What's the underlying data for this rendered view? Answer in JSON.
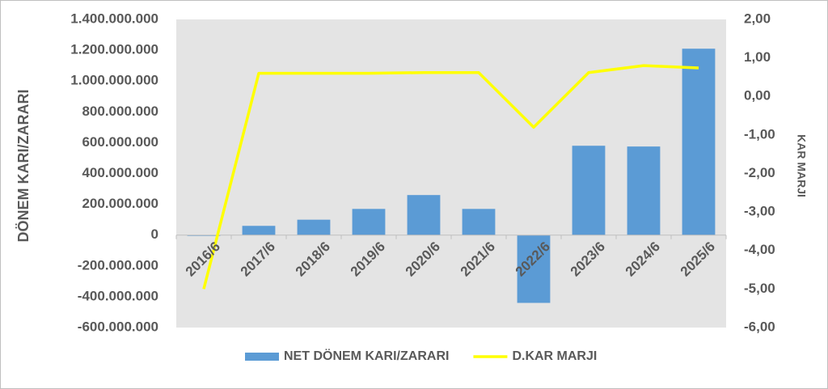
{
  "chart_data": {
    "type": "bar-line",
    "y_label": "DÖNEM KARI/ZARARI",
    "y2_label": "KAR MARJI",
    "categories": [
      "2016/6",
      "2017/6",
      "2018/6",
      "2019/6",
      "2020/6",
      "2021/6",
      "2022/6",
      "2023/6",
      "2024/6",
      "2025/6"
    ],
    "series": [
      {
        "name": "NET DÖNEM KARI/ZARARI",
        "color": "#5b9bd5",
        "type": "bar",
        "values": [
          -5000000,
          60000000,
          100000000,
          170000000,
          260000000,
          170000000,
          -440000000,
          580000000,
          575000000,
          1210000000
        ]
      },
      {
        "name": "D.KAR MARJI",
        "color": "#ffff00",
        "type": "line",
        "axis": "y2",
        "values": [
          -5.0,
          0.6,
          0.6,
          0.6,
          0.62,
          0.62,
          -0.8,
          0.62,
          0.8,
          0.74
        ]
      }
    ],
    "ylim": [
      -600000000,
      1400000000
    ],
    "yticks": [
      {
        "value": 1400000000,
        "label": "1.400.000.000"
      },
      {
        "value": 1200000000,
        "label": "1.200.000.000"
      },
      {
        "value": 1000000000,
        "label": "1.000.000.000"
      },
      {
        "value": 800000000,
        "label": "800.000.000"
      },
      {
        "value": 600000000,
        "label": "600.000.000"
      },
      {
        "value": 400000000,
        "label": "400.000.000"
      },
      {
        "value": 200000000,
        "label": "200.000.000"
      },
      0,
      {
        "value": -200000000,
        "label": "-200.000.000"
      },
      {
        "value": -400000000,
        "label": "-400.000.000"
      },
      {
        "value": -600000000,
        "label": "-600.000.000"
      }
    ],
    "y2lim": [
      -6,
      2
    ],
    "y2ticks": [
      {
        "value": 2,
        "label": "2,00"
      },
      {
        "value": 1,
        "label": "1,00"
      },
      {
        "value": 0,
        "label": "0,00"
      },
      {
        "value": -1,
        "label": "-1,00"
      },
      {
        "value": -2,
        "label": "-2,00"
      },
      {
        "value": -3,
        "label": "-3,00"
      },
      {
        "value": -4,
        "label": "-4,00"
      },
      {
        "value": -5,
        "label": "-5,00"
      },
      {
        "value": -6,
        "label": "-6,00"
      }
    ],
    "legend": "bottom"
  }
}
